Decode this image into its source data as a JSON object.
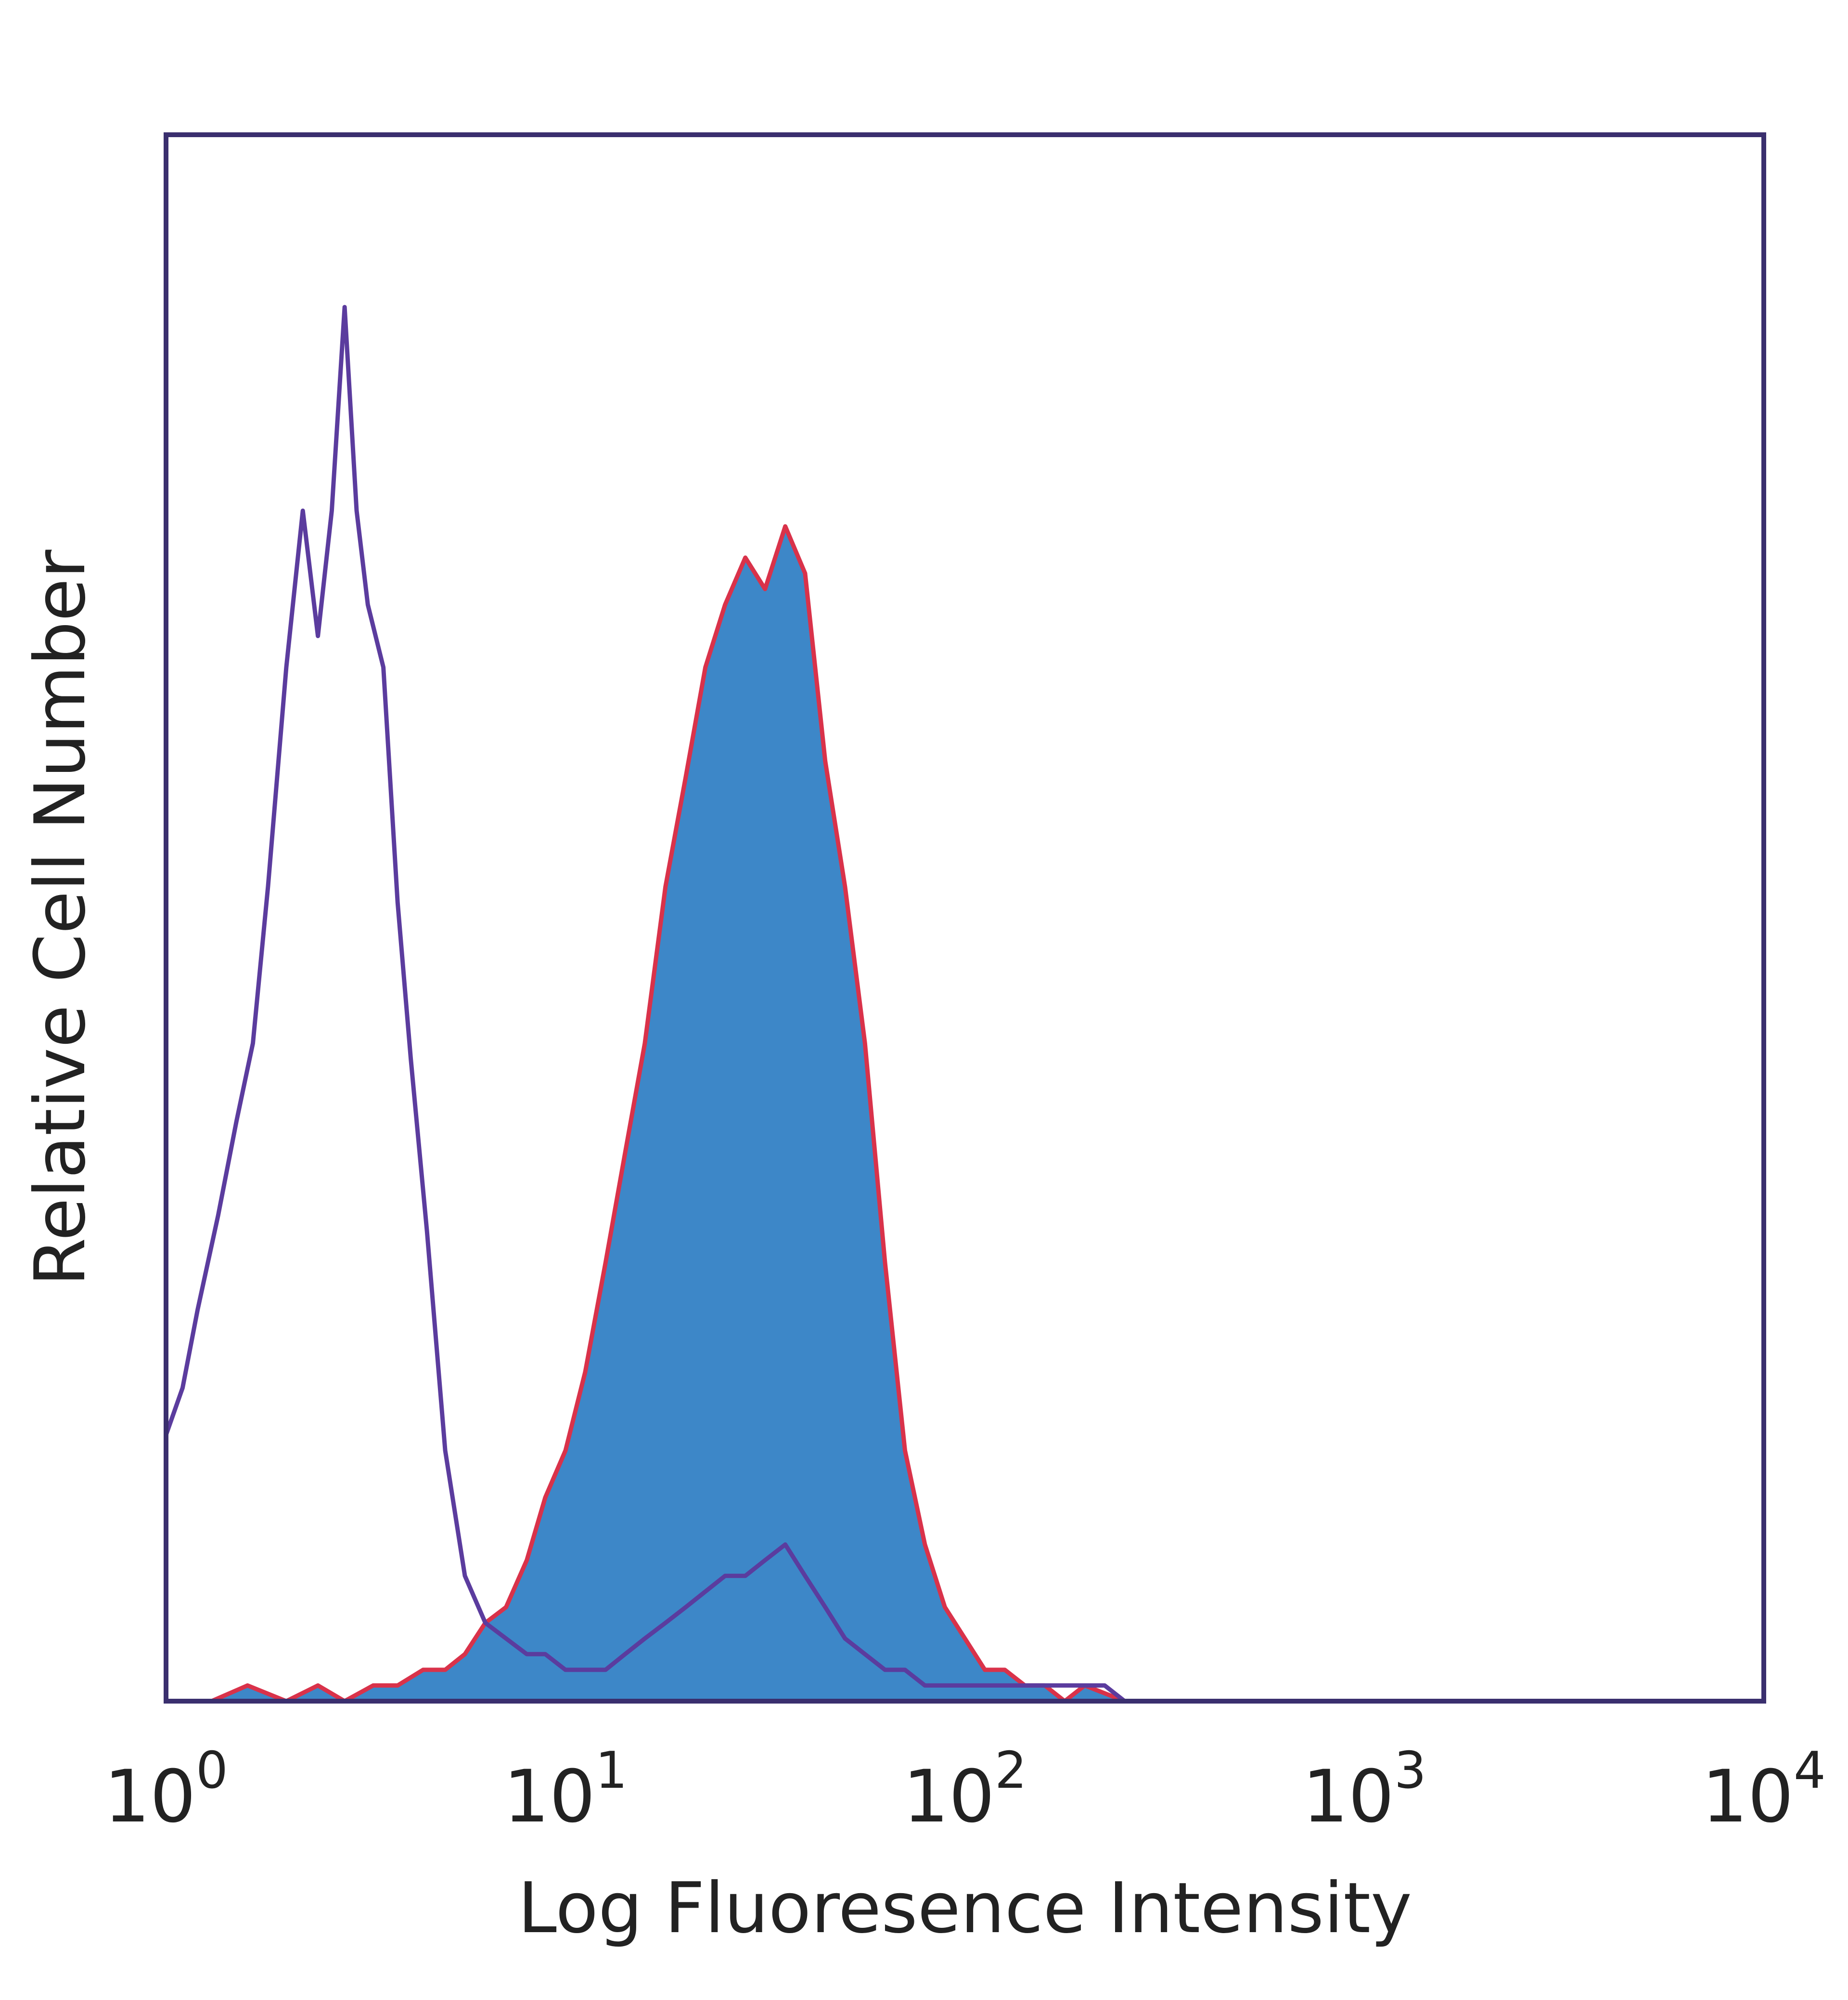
{
  "chart_data": {
    "type": "area",
    "title": "",
    "xlabel": "Log Fluoresence Intensity",
    "ylabel": "Relative Cell Number",
    "x_scale": "log",
    "xlim": [
      1,
      10000
    ],
    "ylim": [
      0,
      100
    ],
    "grid": false,
    "legend": "none",
    "x_ticks": [
      {
        "base": "10",
        "exp": "0"
      },
      {
        "base": "10",
        "exp": "1"
      },
      {
        "base": "10",
        "exp": "2"
      },
      {
        "base": "10",
        "exp": "3"
      },
      {
        "base": "10",
        "exp": "4"
      }
    ],
    "series": [
      {
        "style": "filled",
        "fill": "#3d87c8",
        "stroke": "#d9324a",
        "x": [
          1.0,
          1.3,
          1.6,
          2.0,
          2.4,
          2.8,
          3.3,
          3.8,
          4.4,
          5.0,
          5.6,
          6.3,
          7.1,
          8.0,
          8.9,
          10.0,
          11.2,
          12.6,
          14.1,
          15.8,
          17.8,
          20.0,
          22.4,
          25.1,
          28.2,
          31.6,
          35.5,
          39.8,
          44.7,
          50.1,
          56.2,
          63.1,
          70.8,
          79.4,
          89.1,
          100.0,
          112.2,
          125.9,
          141.3,
          158.5,
          177.8,
          199.5,
          251.2
        ],
        "y": [
          0,
          0,
          1,
          0,
          1,
          0,
          1,
          1,
          2,
          2,
          3,
          5,
          6,
          9,
          13,
          16,
          21,
          28,
          35,
          42,
          52,
          59,
          66,
          70,
          73,
          71,
          75,
          72,
          60,
          52,
          42,
          28,
          16,
          10,
          6,
          4,
          2,
          2,
          1,
          1,
          0,
          1,
          0
        ]
      },
      {
        "style": "outline",
        "stroke": "#5b3c9e",
        "x": [
          1.0,
          1.1,
          1.2,
          1.35,
          1.5,
          1.65,
          1.8,
          2.0,
          2.2,
          2.4,
          2.6,
          2.8,
          3.0,
          3.2,
          3.5,
          3.8,
          4.1,
          4.5,
          5.0,
          5.6,
          6.3,
          7.1,
          8.0,
          8.9,
          10.0,
          11.2,
          12.6,
          14.1,
          15.8,
          17.8,
          20.0,
          22.4,
          25.1,
          28.2,
          31.6,
          35.5,
          39.8,
          44.7,
          50.1,
          56.2,
          63.1,
          70.8,
          79.4,
          89.1,
          100.0,
          112.2,
          125.9,
          141.3,
          158.5,
          177.8,
          199.5,
          223.9,
          251.2
        ],
        "y": [
          17,
          20,
          25,
          31,
          37,
          42,
          52,
          66,
          76,
          68,
          76,
          89,
          76,
          70,
          66,
          51,
          41,
          30,
          16,
          8,
          5,
          4,
          3,
          3,
          2,
          2,
          2,
          3,
          4,
          5,
          6,
          7,
          8,
          8,
          9,
          10,
          8,
          6,
          4,
          3,
          2,
          2,
          1,
          1,
          1,
          1,
          1,
          1,
          1,
          1,
          1,
          1,
          0
        ]
      }
    ]
  }
}
